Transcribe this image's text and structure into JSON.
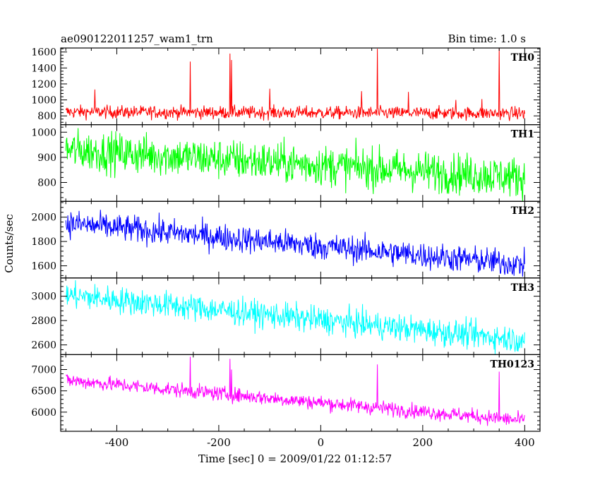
{
  "header": {
    "title": "ae090122011257_wam1_trn",
    "bin_time": "Bin time: 1.0 s"
  },
  "chart_data": {
    "type": "line",
    "title": "ae090122011257_wam1_trn",
    "bin_time": "Bin time: 1.0 s",
    "xlabel": "Time [sec] 0 = 2009/01/22 01:12:57",
    "ylabel": "Counts/sec",
    "xlim": [
      -510,
      430
    ],
    "xticks": [
      -400,
      -200,
      0,
      200,
      400
    ],
    "grid": false,
    "panels": [
      {
        "name": "TH0",
        "color": "#ff0000",
        "ylim": [
          690,
          1650
        ],
        "yticks": [
          800,
          1000,
          1200,
          1400,
          1600
        ],
        "trend": [
          [
            -500,
            850
          ],
          [
            400,
            830
          ]
        ],
        "noise": 40,
        "spikes": [
          [
            -443,
            1130
          ],
          [
            -256,
            1480
          ],
          [
            -178,
            1580
          ],
          [
            -175,
            1500
          ],
          [
            -100,
            1140
          ],
          [
            80,
            1110
          ],
          [
            111,
            1640
          ],
          [
            172,
            1100
          ],
          [
            265,
            1000
          ],
          [
            316,
            1010
          ],
          [
            350,
            1650
          ]
        ]
      },
      {
        "name": "TH1",
        "color": "#00ff00",
        "ylim": [
          725,
          1030
        ],
        "yticks": [
          800,
          900,
          1000
        ],
        "trend": [
          [
            -500,
            930
          ],
          [
            400,
            820
          ]
        ],
        "noise": 40,
        "spikes": []
      },
      {
        "name": "TH2",
        "color": "#0000ff",
        "ylim": [
          1500,
          2130
        ],
        "yticks": [
          1600,
          1800,
          2000
        ],
        "trend": [
          [
            -500,
            1950
          ],
          [
            400,
            1610
          ]
        ],
        "noise": 55,
        "spikes": []
      },
      {
        "name": "TH3",
        "color": "#00ffff",
        "ylim": [
          2520,
          3150
        ],
        "yticks": [
          2600,
          2800,
          3000
        ],
        "trend": [
          [
            -500,
            3010
          ],
          [
            400,
            2640
          ]
        ],
        "noise": 55,
        "spikes": []
      },
      {
        "name": "TH0123",
        "color": "#ff00ff",
        "ylim": [
          5550,
          7350
        ],
        "yticks": [
          6000,
          6500,
          7000
        ],
        "trend": [
          [
            -500,
            6750
          ],
          [
            400,
            5800
          ]
        ],
        "noise": 85,
        "spikes": [
          [
            -256,
            7300
          ],
          [
            -178,
            7250
          ],
          [
            -175,
            7000
          ],
          [
            111,
            7120
          ],
          [
            350,
            6950
          ]
        ]
      }
    ]
  }
}
